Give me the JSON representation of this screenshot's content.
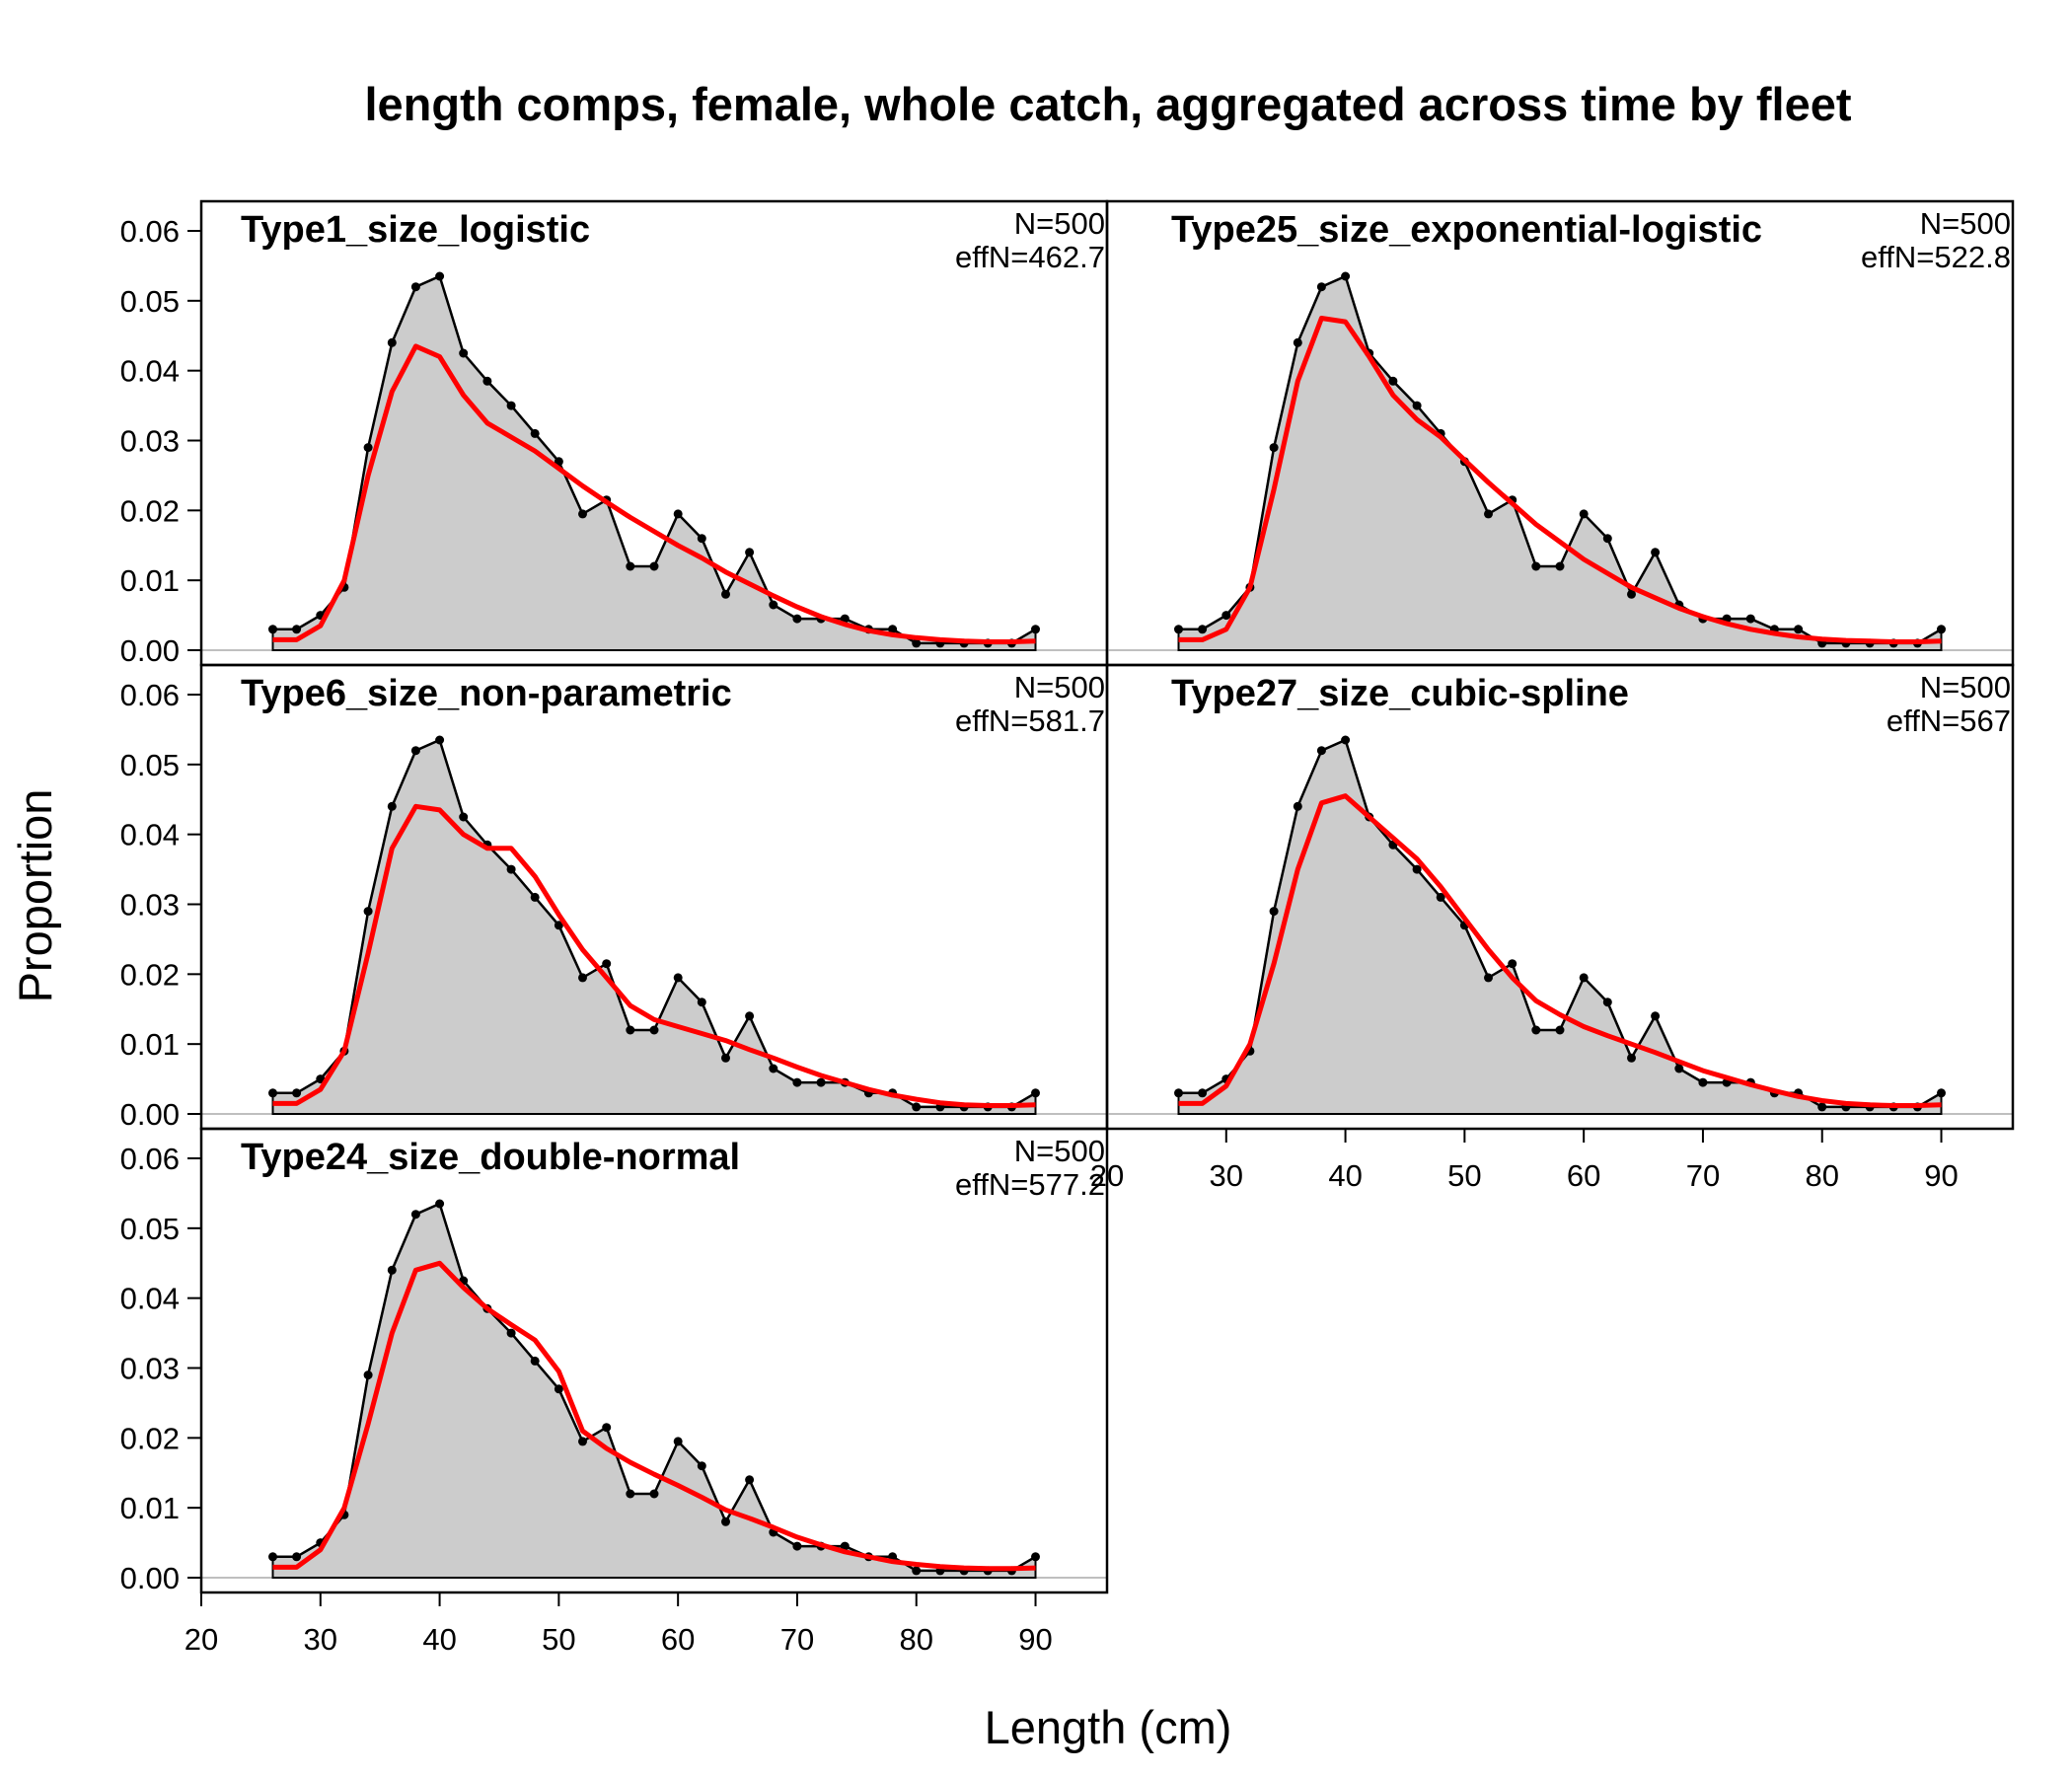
{
  "chart_data": {
    "type": "area",
    "title": "length comps, female, whole catch, aggregated across time by fleet",
    "xlabel": "Length (cm)",
    "ylabel": "Proportion",
    "xlim": [
      20,
      96
    ],
    "ylim": [
      0,
      0.062
    ],
    "x_ticks": [
      "20",
      "30",
      "40",
      "50",
      "60",
      "70",
      "80",
      "90"
    ],
    "y_ticks": [
      "0.00",
      "0.01",
      "0.02",
      "0.03",
      "0.04",
      "0.05",
      "0.06"
    ],
    "grid": false,
    "colors": {
      "observed_fill": "#cccccc",
      "observed_line": "#000000",
      "expected_line": "#ff0000",
      "zero_line": "#bfbfbf"
    },
    "x": [
      26,
      28,
      30,
      32,
      34,
      36,
      38,
      40,
      42,
      44,
      46,
      48,
      50,
      52,
      54,
      56,
      58,
      60,
      62,
      64,
      66,
      68,
      70,
      72,
      74,
      76,
      78,
      80,
      82,
      84,
      86,
      88,
      90
    ],
    "observed": [
      0.003,
      0.003,
      0.005,
      0.009,
      0.029,
      0.044,
      0.052,
      0.0535,
      0.0425,
      0.0385,
      0.035,
      0.031,
      0.027,
      0.0195,
      0.0215,
      0.012,
      0.012,
      0.0195,
      0.016,
      0.008,
      0.014,
      0.0065,
      0.0045,
      0.0045,
      0.0045,
      0.003,
      0.003,
      0.001,
      0.001,
      0.001,
      0.001,
      0.001,
      0.003
    ],
    "panels": [
      {
        "name": "Type1_size_logistic",
        "N": "N=500",
        "effN": "effN=462.7",
        "expected": [
          0.0015,
          0.0015,
          0.0035,
          0.01,
          0.025,
          0.037,
          0.0435,
          0.042,
          0.0365,
          0.0325,
          0.0305,
          0.0285,
          0.026,
          0.0235,
          0.0212,
          0.019,
          0.017,
          0.015,
          0.0132,
          0.0112,
          0.0095,
          0.0078,
          0.0062,
          0.0048,
          0.0037,
          0.0028,
          0.0022,
          0.0018,
          0.0015,
          0.0013,
          0.0012,
          0.0012,
          0.0013
        ]
      },
      {
        "name": "Type25_size_exponential-logistic",
        "N": "N=500",
        "effN": "effN=522.8",
        "expected": [
          0.0015,
          0.0015,
          0.003,
          0.009,
          0.023,
          0.0385,
          0.0475,
          0.047,
          0.042,
          0.0365,
          0.033,
          0.0305,
          0.0272,
          0.024,
          0.021,
          0.018,
          0.0155,
          0.013,
          0.011,
          0.009,
          0.0075,
          0.006,
          0.0048,
          0.0038,
          0.003,
          0.0024,
          0.0019,
          0.0016,
          0.0014,
          0.0013,
          0.0012,
          0.0012,
          0.0013
        ]
      },
      {
        "name": "Type6_size_non-parametric",
        "N": "N=500",
        "effN": "effN=581.7",
        "expected": [
          0.0015,
          0.0015,
          0.0035,
          0.009,
          0.023,
          0.038,
          0.044,
          0.0435,
          0.04,
          0.038,
          0.038,
          0.034,
          0.0285,
          0.0235,
          0.0195,
          0.0155,
          0.0135,
          0.0125,
          0.0115,
          0.0105,
          0.0092,
          0.008,
          0.0067,
          0.0055,
          0.0045,
          0.0035,
          0.0027,
          0.0021,
          0.0016,
          0.0013,
          0.0012,
          0.0012,
          0.0013
        ]
      },
      {
        "name": "Type27_size_cubic-spline",
        "N": "N=500",
        "effN": "effN=567",
        "expected": [
          0.0015,
          0.0015,
          0.004,
          0.01,
          0.0215,
          0.035,
          0.0445,
          0.0455,
          0.0425,
          0.0395,
          0.0365,
          0.0325,
          0.028,
          0.0235,
          0.0195,
          0.0162,
          0.0142,
          0.0125,
          0.0112,
          0.01,
          0.0088,
          0.0075,
          0.0062,
          0.0052,
          0.0042,
          0.0033,
          0.0025,
          0.0019,
          0.0015,
          0.0013,
          0.0012,
          0.0012,
          0.0013
        ]
      },
      {
        "name": "Type24_size_double-normal",
        "N": "N=500",
        "effN": "effN=577.2",
        "expected": [
          0.0015,
          0.0015,
          0.004,
          0.01,
          0.022,
          0.035,
          0.044,
          0.045,
          0.0415,
          0.0385,
          0.0362,
          0.034,
          0.0295,
          0.021,
          0.0185,
          0.0165,
          0.0148,
          0.0132,
          0.0115,
          0.0097,
          0.0085,
          0.0072,
          0.0058,
          0.0047,
          0.0037,
          0.003,
          0.0023,
          0.0019,
          0.0016,
          0.0014,
          0.0013,
          0.0013,
          0.0014
        ]
      }
    ]
  }
}
